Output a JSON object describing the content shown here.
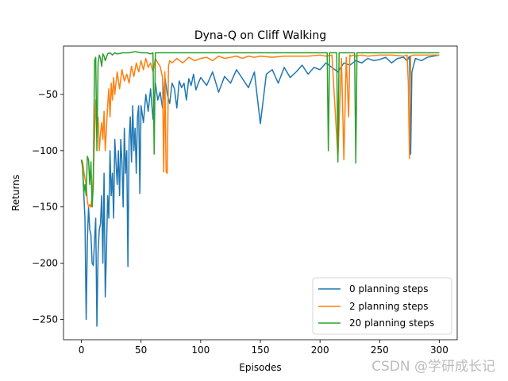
{
  "chart_data": {
    "type": "line",
    "title": "Dyna-Q on Cliff Walking",
    "xlabel": "Episodes",
    "ylabel": "Returns",
    "xlim": [
      -15,
      315
    ],
    "ylim": [
      -268,
      -7
    ],
    "xticks": [
      0,
      50,
      100,
      150,
      200,
      250,
      300
    ],
    "yticks": [
      -250,
      -200,
      -150,
      -100,
      -50
    ],
    "grid": false,
    "legend_position": "lower-right",
    "series": [
      {
        "name": "0 planning steps",
        "color": "#1f77b4",
        "x": [
          0,
          1,
          2,
          3,
          4,
          5,
          6,
          7,
          8,
          9,
          10,
          11,
          12,
          13,
          14,
          15,
          16,
          17,
          18,
          19,
          20,
          21,
          22,
          23,
          24,
          25,
          26,
          27,
          28,
          29,
          30,
          31,
          32,
          33,
          34,
          35,
          36,
          37,
          38,
          39,
          40,
          41,
          42,
          43,
          44,
          45,
          46,
          47,
          48,
          49,
          50,
          52,
          54,
          56,
          58,
          60,
          62,
          64,
          66,
          68,
          70,
          72,
          74,
          76,
          78,
          80,
          82,
          84,
          86,
          88,
          90,
          92,
          94,
          96,
          98,
          100,
          105,
          110,
          115,
          120,
          125,
          130,
          135,
          140,
          145,
          150,
          155,
          160,
          165,
          170,
          175,
          180,
          185,
          190,
          195,
          200,
          205,
          210,
          215,
          220,
          225,
          230,
          235,
          240,
          245,
          250,
          255,
          260,
          265,
          270,
          273,
          275,
          276,
          277,
          280,
          285,
          290,
          295,
          300
        ],
        "y": [
          -108,
          -112,
          -138,
          -160,
          -250,
          -180,
          -150,
          -170,
          -175,
          -200,
          -202,
          -180,
          -160,
          -256,
          -190,
          -170,
          -165,
          -140,
          -200,
          -120,
          -230,
          -190,
          -140,
          -160,
          -100,
          -140,
          -120,
          -160,
          -90,
          -110,
          -130,
          -100,
          -140,
          -90,
          -110,
          -150,
          -80,
          -120,
          -100,
          -203,
          -90,
          -70,
          -110,
          -60,
          -100,
          -80,
          -120,
          -70,
          -60,
          -138,
          -60,
          -75,
          -50,
          -65,
          -45,
          -72,
          -40,
          -55,
          -48,
          -62,
          -35,
          -50,
          -58,
          -40,
          -45,
          -62,
          -38,
          -44,
          -40,
          -55,
          -36,
          -42,
          -32,
          -46,
          -40,
          -35,
          -42,
          -30,
          -48,
          -34,
          -40,
          -28,
          -36,
          -44,
          -30,
          -76,
          -32,
          -28,
          -40,
          -26,
          -35,
          -30,
          -24,
          -32,
          -26,
          -28,
          -22,
          -26,
          -30,
          -22,
          -24,
          -20,
          -22,
          -18,
          -20,
          -19,
          -17,
          -22,
          -18,
          -17,
          -20,
          -16,
          -103,
          -30,
          -18,
          -20,
          -17,
          -16,
          -15
        ]
      },
      {
        "name": "2 planning steps",
        "color": "#ff7f0e",
        "x": [
          0,
          1,
          2,
          3,
          4,
          5,
          6,
          7,
          8,
          9,
          10,
          11,
          12,
          13,
          14,
          15,
          16,
          17,
          18,
          19,
          20,
          21,
          22,
          23,
          24,
          25,
          26,
          27,
          28,
          29,
          30,
          32,
          34,
          36,
          38,
          40,
          42,
          44,
          46,
          48,
          50,
          52,
          54,
          56,
          58,
          60,
          62,
          64,
          66,
          68,
          69,
          70,
          71,
          72,
          73,
          74,
          76,
          78,
          80,
          85,
          90,
          95,
          100,
          105,
          110,
          115,
          120,
          125,
          130,
          135,
          140,
          145,
          150,
          160,
          170,
          180,
          190,
          200,
          205,
          210,
          215,
          218,
          220,
          222,
          224,
          225,
          226,
          228,
          230,
          235,
          240,
          250,
          260,
          270,
          273,
          274,
          275,
          276,
          278,
          280,
          290,
          300
        ],
        "y": [
          -108,
          -110,
          -118,
          -125,
          -130,
          -145,
          -150,
          -148,
          -150,
          -140,
          -120,
          -90,
          -55,
          -80,
          -70,
          -100,
          -85,
          -75,
          -90,
          -65,
          -100,
          -80,
          -60,
          -45,
          -70,
          -40,
          -55,
          -35,
          -50,
          -40,
          -30,
          -45,
          -28,
          -38,
          -32,
          -40,
          -25,
          -34,
          -22,
          -30,
          -20,
          -28,
          -18,
          -26,
          -22,
          -30,
          -18,
          -22,
          -25,
          -35,
          -119,
          -30,
          -119,
          -120,
          -25,
          -20,
          -22,
          -20,
          -18,
          -22,
          -17,
          -20,
          -18,
          -17,
          -20,
          -16,
          -18,
          -17,
          -16,
          -18,
          -16,
          -17,
          -16,
          -17,
          -16,
          -16,
          -16,
          -15,
          -16,
          -15,
          -106,
          -18,
          -108,
          -17,
          -70,
          -15,
          -16,
          -15,
          -16,
          -15,
          -16,
          -15,
          -15,
          -16,
          -15,
          -40,
          -107,
          -16,
          -15,
          -15,
          -15,
          -15
        ]
      },
      {
        "name": "20 planning steps",
        "color": "#2ca02c",
        "x": [
          0,
          1,
          2,
          3,
          4,
          5,
          6,
          7,
          8,
          9,
          10,
          11,
          12,
          13,
          14,
          15,
          16,
          17,
          18,
          19,
          20,
          22,
          24,
          26,
          28,
          30,
          35,
          40,
          45,
          50,
          55,
          58,
          60,
          61,
          62,
          63,
          64,
          70,
          80,
          100,
          150,
          200,
          205,
          206,
          207,
          208,
          209,
          210,
          212,
          214,
          215,
          216,
          217,
          218,
          219,
          220,
          221,
          222,
          225,
          228,
          229,
          230,
          231,
          232,
          235,
          250,
          300
        ],
        "y": [
          -108,
          -115,
          -138,
          -130,
          -140,
          -105,
          -108,
          -130,
          -110,
          -150,
          -130,
          -20,
          -17,
          -100,
          -22,
          -15,
          -18,
          -25,
          -14,
          -16,
          -20,
          -14,
          -13,
          -15,
          -13,
          -14,
          -13,
          -13,
          -12,
          -13,
          -13,
          -14,
          -13,
          -103,
          -13,
          -13,
          -13,
          -13,
          -13,
          -13,
          -13,
          -13,
          -13,
          -13,
          -100,
          -13,
          -13,
          -13,
          -13,
          -13,
          -110,
          -13,
          -13,
          -13,
          -13,
          -13,
          -13,
          -13,
          -13,
          -13,
          -13,
          -111,
          -13,
          -13,
          -13,
          -13,
          -13
        ]
      }
    ]
  },
  "watermark": "CSDN @学研成长记"
}
